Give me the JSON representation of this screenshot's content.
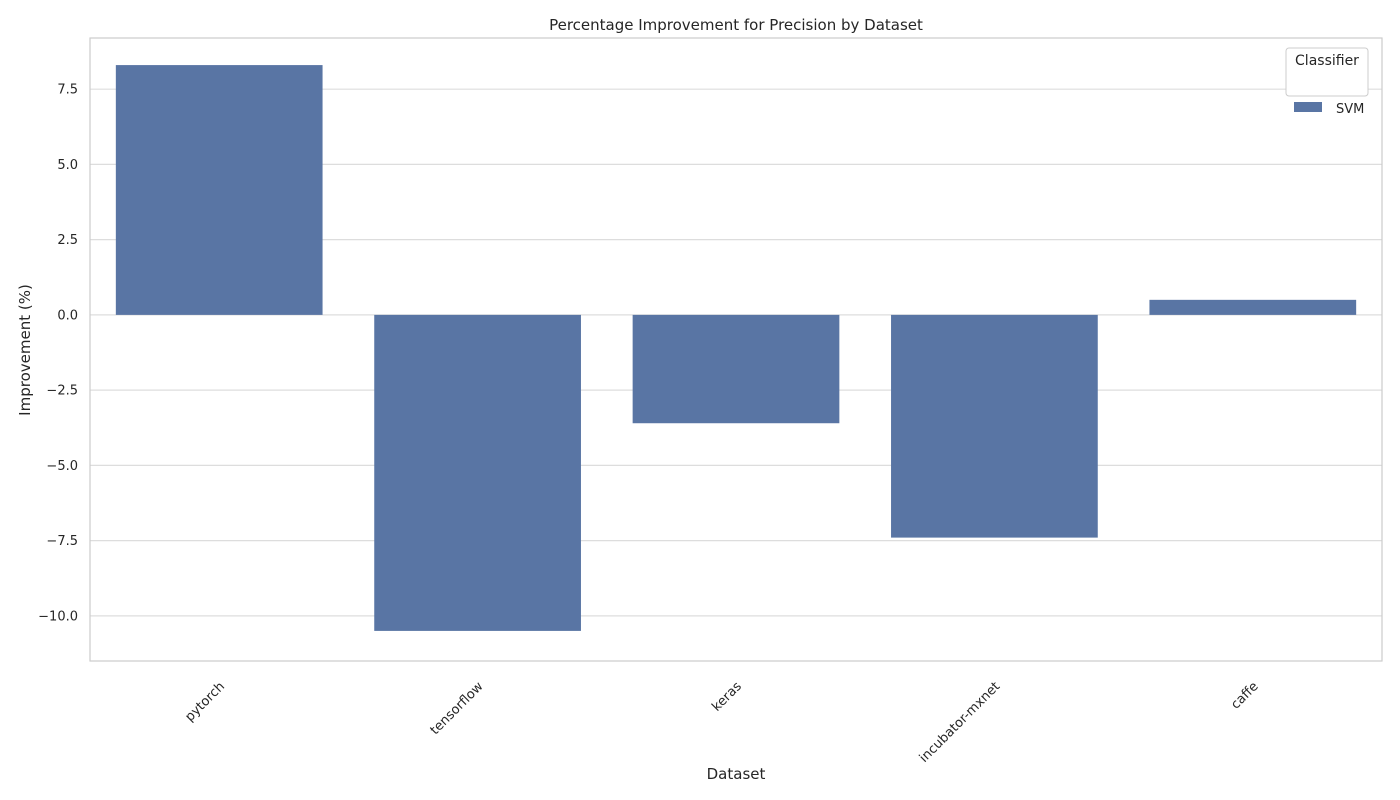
{
  "chart_data": {
    "type": "bar",
    "title": "Percentage Improvement for Precision by Dataset",
    "xlabel": "Dataset",
    "ylabel": "Improvement (%)",
    "categories": [
      "pytorch",
      "tensorflow",
      "keras",
      "incubator-mxnet",
      "caffe"
    ],
    "series": [
      {
        "name": "SVM",
        "values": [
          8.3,
          -10.5,
          -3.6,
          -7.4,
          0.5
        ],
        "color": "#5975a4"
      }
    ],
    "ylim": [
      -11.5,
      9.2
    ],
    "yticks": [
      7.5,
      5.0,
      2.5,
      0.0,
      -2.5,
      -5.0,
      -7.5,
      -10.0
    ],
    "ytick_labels": [
      "7.5",
      "5.0",
      "2.5",
      "0.0",
      "−2.5",
      "−5.0",
      "−7.5",
      "−10.0"
    ],
    "grid": true,
    "legend": {
      "title": "Classifier",
      "placement": "top-right"
    }
  }
}
